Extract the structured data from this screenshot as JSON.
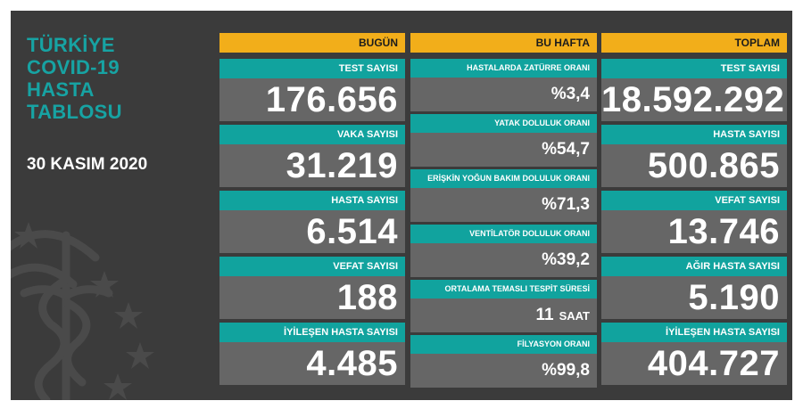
{
  "header": {
    "title": "TÜRKİYE\nCOVID-19\nHASTA\nTABLOSU",
    "date": "30 KASIM 2020"
  },
  "columns": {
    "today": {
      "header": "BUGÜN",
      "items": [
        {
          "label": "TEST SAYISI",
          "value": "176.656"
        },
        {
          "label": "VAKA SAYISI",
          "value": "31.219"
        },
        {
          "label": "HASTA SAYISI",
          "value": "6.514"
        },
        {
          "label": "VEFAT SAYISI",
          "value": "188"
        },
        {
          "label": "İYİLEŞEN HASTA SAYISI",
          "value": "4.485"
        }
      ]
    },
    "week": {
      "header": "BU HAFTA",
      "items": [
        {
          "label": "HASTALARDA ZATÜRRE ORANI",
          "value": "%3,4"
        },
        {
          "label": "YATAK DOLULUK ORANI",
          "value": "%54,7"
        },
        {
          "label": "ERİŞKİN YOĞUN BAKIM DOLULUK ORANI",
          "value": "%71,3"
        },
        {
          "label": "VENTİLATÖR DOLULUK ORANI",
          "value": "%39,2"
        },
        {
          "label": "ORTALAMA TEMASLI TESPİT SÜRESİ",
          "value": "11",
          "unit": "SAAT"
        },
        {
          "label": "FİLYASYON ORANI",
          "value": "%99,8"
        }
      ]
    },
    "total": {
      "header": "TOPLAM",
      "items": [
        {
          "label": "TEST SAYISI",
          "value": "18.592.292"
        },
        {
          "label": "HASTA SAYISI",
          "value": "500.865"
        },
        {
          "label": "VEFAT SAYISI",
          "value": "13.746"
        },
        {
          "label": "AĞIR HASTA SAYISI",
          "value": "5.190"
        },
        {
          "label": "İYİLEŞEN HASTA SAYISI",
          "value": "404.727"
        }
      ]
    }
  },
  "colors": {
    "background": "#3b3b3b",
    "header_accent": "#f2ae1a",
    "label_teal": "#11a39e",
    "value_gray": "#666666",
    "title_teal": "#17a3a3"
  },
  "emblem_icon": "ministry-of-health-emblem-icon"
}
